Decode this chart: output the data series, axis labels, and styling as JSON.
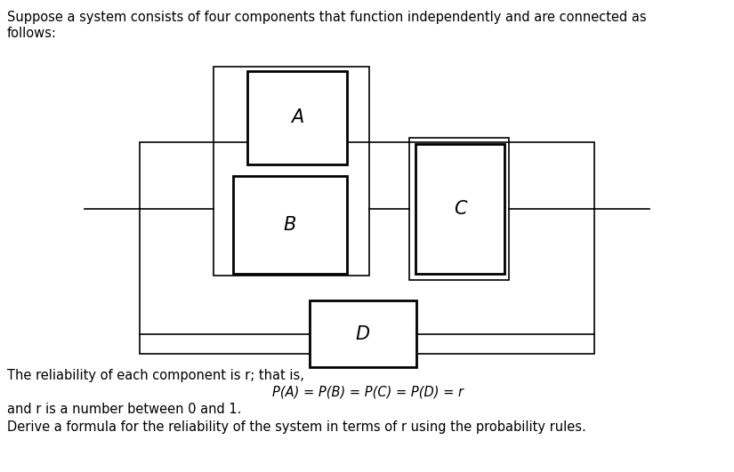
{
  "title_text1": "Suppose a system consists of four components that function independently and are connected as",
  "title_text2": "follows:",
  "bottom_text_1": "The reliability of each component is r; that is,",
  "bottom_text_2": "P(A) = P(B) = P(C) = P(D) = r",
  "bottom_text_3": "and r is a number between 0 and 1.",
  "bottom_text_4": "Derive a formula for the reliability of the system in terms of r using the probability rules.",
  "bg_color": "#ffffff",
  "line_color": "#000000",
  "thin_lw": 1.2,
  "thick_lw": 2.0,
  "font_size_title": 10.5,
  "font_size_bottom": 10.5,
  "font_size_label": 15
}
